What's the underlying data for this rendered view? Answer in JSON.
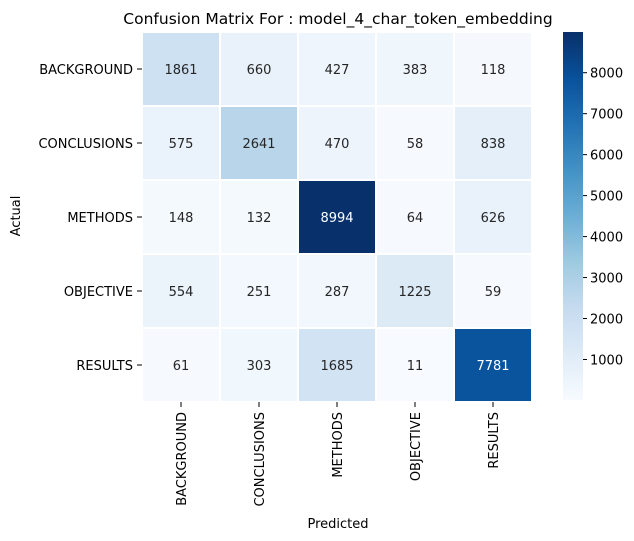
{
  "chart_data": {
    "type": "heatmap",
    "title": "Confusion Matrix For : model_4_char_token_embedding",
    "xlabel": "Predicted",
    "ylabel": "Actual",
    "x_categories": [
      "BACKGROUND",
      "CONCLUSIONS",
      "METHODS",
      "OBJECTIVE",
      "RESULTS"
    ],
    "y_categories": [
      "BACKGROUND",
      "CONCLUSIONS",
      "METHODS",
      "OBJECTIVE",
      "RESULTS"
    ],
    "values": [
      [
        1861,
        660,
        427,
        383,
        118
      ],
      [
        575,
        2641,
        470,
        58,
        838
      ],
      [
        148,
        132,
        8994,
        64,
        626
      ],
      [
        554,
        251,
        287,
        1225,
        59
      ],
      [
        61,
        303,
        1685,
        11,
        7781
      ]
    ],
    "colormap": "Blues",
    "vmin": 11,
    "vmax": 8994,
    "colorbar_ticks": [
      1000,
      2000,
      3000,
      4000,
      5000,
      6000,
      7000,
      8000
    ],
    "cell_separator_color": "#ffffff"
  }
}
